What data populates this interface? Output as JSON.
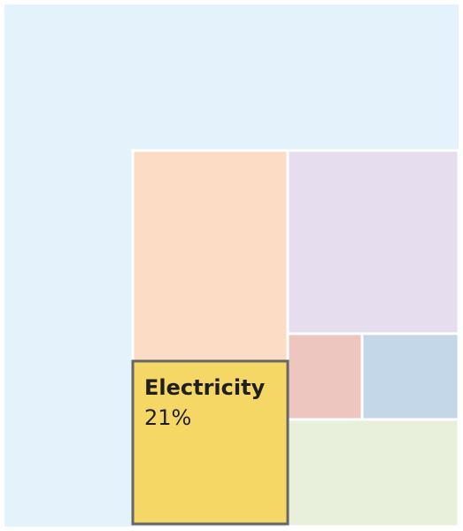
{
  "chart_data": {
    "type": "treemap",
    "highlighted_tile": {
      "label": "Electricity",
      "value_text": "21%",
      "value": 21
    },
    "tiles": [
      {
        "id": "outer",
        "color": "#e4f3fb"
      },
      {
        "id": "peach",
        "color": "#fcdcc5"
      },
      {
        "id": "lavender",
        "color": "#e6deef"
      },
      {
        "id": "rose",
        "color": "#edc6c0"
      },
      {
        "id": "blue",
        "color": "#c3d7e8"
      },
      {
        "id": "green",
        "color": "#e8f0dc"
      },
      {
        "id": "electricity",
        "color": "#f5d766",
        "border": "#666666"
      }
    ]
  }
}
